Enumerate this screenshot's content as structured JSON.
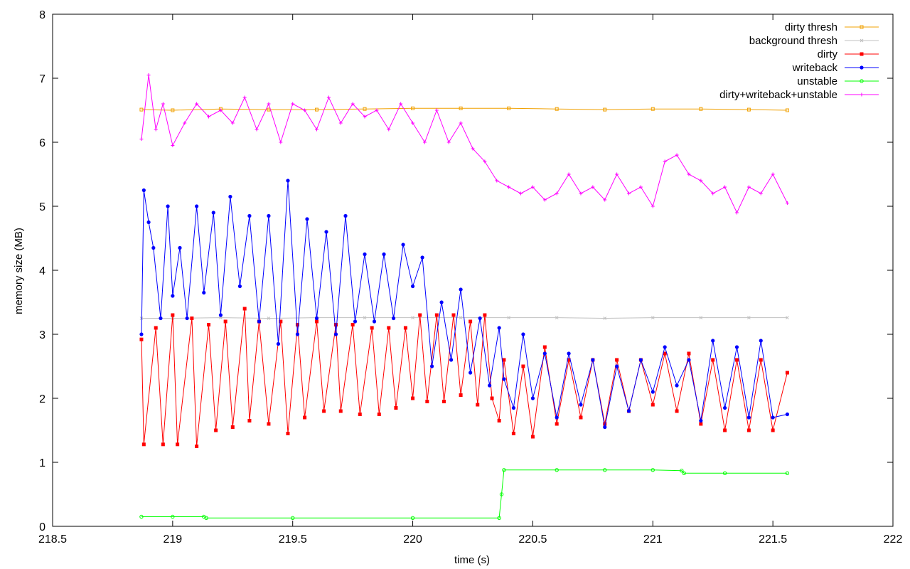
{
  "chart_data": {
    "type": "line",
    "title": "",
    "xlabel": "time (s)",
    "ylabel": "memory size (MB)",
    "xlim": [
      218.5,
      222
    ],
    "ylim": [
      0,
      8
    ],
    "xticks": [
      "218.5",
      "219",
      "219.5",
      "220",
      "220.5",
      "221",
      "221.5",
      "222"
    ],
    "yticks": [
      "0",
      "1",
      "2",
      "3",
      "4",
      "5",
      "6",
      "7",
      "8"
    ],
    "grid": false,
    "legend_position": "top-right",
    "series": [
      {
        "name": "dirty thresh",
        "color": "#f0a000",
        "marker": "square-open",
        "x": [
          218.87,
          219.0,
          219.2,
          219.4,
          219.6,
          219.8,
          220.0,
          220.2,
          220.4,
          220.6,
          220.8,
          221.0,
          221.2,
          221.4,
          221.56
        ],
        "y": [
          6.51,
          6.5,
          6.52,
          6.51,
          6.51,
          6.52,
          6.53,
          6.53,
          6.53,
          6.52,
          6.51,
          6.52,
          6.52,
          6.51,
          6.5
        ]
      },
      {
        "name": "background thresh",
        "color": "#c0c0c0",
        "marker": "cross",
        "x": [
          218.87,
          219.0,
          219.2,
          219.4,
          219.6,
          219.8,
          220.0,
          220.2,
          220.4,
          220.6,
          220.8,
          221.0,
          221.2,
          221.4,
          221.56
        ],
        "y": [
          3.25,
          3.25,
          3.26,
          3.25,
          3.26,
          3.26,
          3.26,
          3.26,
          3.26,
          3.26,
          3.25,
          3.26,
          3.26,
          3.26,
          3.26
        ]
      },
      {
        "name": "dirty",
        "color": "#ff0000",
        "marker": "square",
        "x": [
          218.87,
          218.88,
          218.93,
          218.96,
          219.0,
          219.02,
          219.08,
          219.1,
          219.15,
          219.18,
          219.22,
          219.25,
          219.3,
          219.32,
          219.36,
          219.4,
          219.45,
          219.48,
          219.52,
          219.55,
          219.6,
          219.63,
          219.68,
          219.7,
          219.75,
          219.78,
          219.83,
          219.86,
          219.9,
          219.93,
          219.97,
          220.0,
          220.03,
          220.06,
          220.1,
          220.13,
          220.17,
          220.2,
          220.24,
          220.27,
          220.3,
          220.33,
          220.36,
          220.38,
          220.42,
          220.46,
          220.5,
          220.55,
          220.6,
          220.65,
          220.7,
          220.75,
          220.8,
          220.85,
          220.9,
          220.95,
          221.0,
          221.05,
          221.1,
          221.15,
          221.2,
          221.25,
          221.3,
          221.35,
          221.4,
          221.45,
          221.5,
          221.56
        ],
        "y": [
          2.92,
          1.28,
          3.1,
          1.28,
          3.3,
          1.28,
          3.25,
          1.25,
          3.15,
          1.5,
          3.2,
          1.55,
          3.4,
          1.65,
          3.2,
          1.6,
          3.2,
          1.45,
          3.15,
          1.7,
          3.2,
          1.8,
          3.15,
          1.8,
          3.15,
          1.75,
          3.1,
          1.75,
          3.1,
          1.85,
          3.1,
          2.0,
          3.3,
          1.95,
          3.3,
          1.95,
          3.3,
          2.05,
          3.2,
          1.9,
          3.3,
          2.0,
          1.65,
          2.6,
          1.45,
          2.5,
          1.4,
          2.8,
          1.6,
          2.6,
          1.7,
          2.6,
          1.6,
          2.6,
          1.8,
          2.6,
          1.9,
          2.7,
          1.8,
          2.7,
          1.6,
          2.6,
          1.5,
          2.6,
          1.5,
          2.6,
          1.5,
          2.4
        ]
      },
      {
        "name": "writeback",
        "color": "#0000ff",
        "marker": "circle",
        "x": [
          218.87,
          218.88,
          218.9,
          218.92,
          218.95,
          218.98,
          219.0,
          219.03,
          219.06,
          219.1,
          219.13,
          219.17,
          219.2,
          219.24,
          219.28,
          219.32,
          219.36,
          219.4,
          219.44,
          219.48,
          219.52,
          219.56,
          219.6,
          219.64,
          219.68,
          219.72,
          219.76,
          219.8,
          219.84,
          219.88,
          219.92,
          219.96,
          220.0,
          220.04,
          220.08,
          220.12,
          220.16,
          220.2,
          220.24,
          220.28,
          220.32,
          220.36,
          220.38,
          220.42,
          220.46,
          220.5,
          220.55,
          220.6,
          220.65,
          220.7,
          220.75,
          220.8,
          220.85,
          220.9,
          220.95,
          221.0,
          221.05,
          221.1,
          221.15,
          221.2,
          221.25,
          221.3,
          221.35,
          221.4,
          221.45,
          221.5,
          221.56
        ],
        "y": [
          3.0,
          5.25,
          4.75,
          4.35,
          3.25,
          5.0,
          3.6,
          4.35,
          3.25,
          5.0,
          3.65,
          4.9,
          3.3,
          5.15,
          3.75,
          4.85,
          3.2,
          4.85,
          2.85,
          5.4,
          3.0,
          4.8,
          3.25,
          4.6,
          3.0,
          4.85,
          3.2,
          4.25,
          3.2,
          4.25,
          3.25,
          4.4,
          3.75,
          4.2,
          2.5,
          3.5,
          2.6,
          3.7,
          2.4,
          3.25,
          2.2,
          3.1,
          2.3,
          1.85,
          3.0,
          2.0,
          2.7,
          1.7,
          2.7,
          1.9,
          2.6,
          1.55,
          2.5,
          1.8,
          2.6,
          2.1,
          2.8,
          2.2,
          2.6,
          1.65,
          2.9,
          1.85,
          2.8,
          1.7,
          2.9,
          1.7,
          1.75
        ]
      },
      {
        "name": "unstable",
        "color": "#00ff00",
        "marker": "circle-open",
        "x": [
          218.87,
          219.0,
          219.13,
          219.14,
          219.5,
          220.0,
          220.36,
          220.37,
          220.38,
          220.6,
          220.8,
          221.0,
          221.12,
          221.13,
          221.3,
          221.56
        ],
        "y": [
          0.15,
          0.15,
          0.15,
          0.13,
          0.13,
          0.13,
          0.13,
          0.5,
          0.88,
          0.88,
          0.88,
          0.88,
          0.87,
          0.83,
          0.83,
          0.83
        ]
      },
      {
        "name": "dirty+writeback+unstable",
        "color": "#ff00ff",
        "marker": "plus",
        "x": [
          218.87,
          218.9,
          218.93,
          218.96,
          219.0,
          219.05,
          219.1,
          219.15,
          219.2,
          219.25,
          219.3,
          219.35,
          219.4,
          219.45,
          219.5,
          219.55,
          219.6,
          219.65,
          219.7,
          219.75,
          219.8,
          219.85,
          219.9,
          219.95,
          220.0,
          220.05,
          220.1,
          220.15,
          220.2,
          220.25,
          220.3,
          220.35,
          220.4,
          220.45,
          220.5,
          220.55,
          220.6,
          220.65,
          220.7,
          220.75,
          220.8,
          220.85,
          220.9,
          220.95,
          221.0,
          221.05,
          221.1,
          221.15,
          221.2,
          221.25,
          221.3,
          221.35,
          221.4,
          221.45,
          221.5,
          221.56
        ],
        "y": [
          6.05,
          7.05,
          6.2,
          6.6,
          5.95,
          6.3,
          6.6,
          6.4,
          6.5,
          6.3,
          6.7,
          6.2,
          6.6,
          6.0,
          6.6,
          6.5,
          6.2,
          6.7,
          6.3,
          6.6,
          6.4,
          6.5,
          6.2,
          6.6,
          6.3,
          6.0,
          6.5,
          6.0,
          6.3,
          5.9,
          5.7,
          5.4,
          5.3,
          5.2,
          5.3,
          5.1,
          5.2,
          5.5,
          5.2,
          5.3,
          5.1,
          5.5,
          5.2,
          5.3,
          5.0,
          5.7,
          5.8,
          5.5,
          5.4,
          5.2,
          5.3,
          4.9,
          5.3,
          5.2,
          5.5,
          5.05
        ]
      }
    ]
  }
}
